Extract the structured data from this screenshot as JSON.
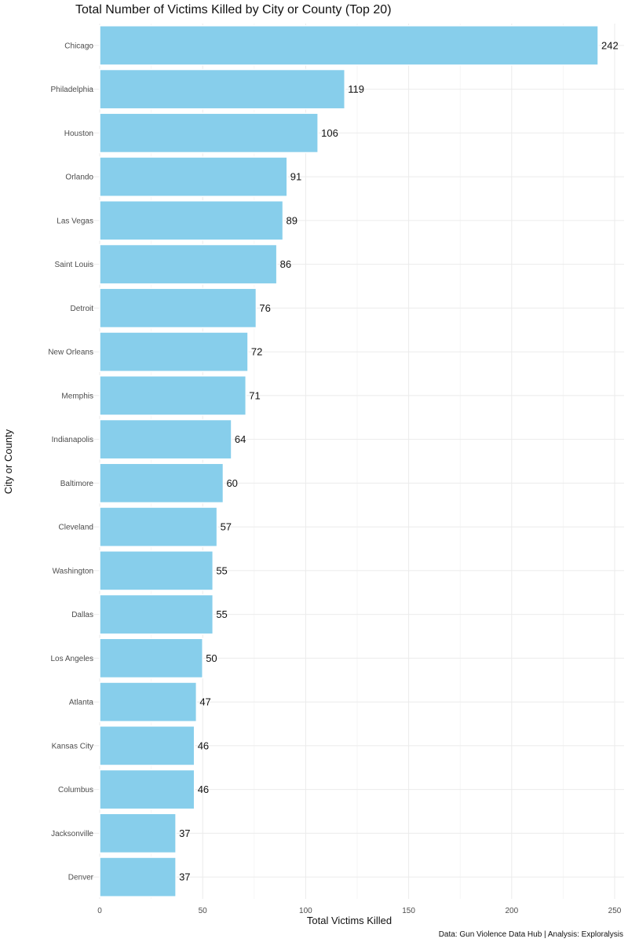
{
  "chart_data": {
    "type": "bar",
    "orientation": "horizontal",
    "title": "Total Number of Victims Killed by City or County (Top 20)",
    "xlabel": "Total Victims Killed",
    "ylabel": "City or County",
    "caption": "Data: Gun Violence Data Hub | Analysis: Exploralysis",
    "categories": [
      "Chicago",
      "Philadelphia",
      "Houston",
      "Orlando",
      "Las Vegas",
      "Saint Louis",
      "Detroit",
      "New Orleans",
      "Memphis",
      "Indianapolis",
      "Baltimore",
      "Cleveland",
      "Washington",
      "Dallas",
      "Los Angeles",
      "Atlanta",
      "Kansas City",
      "Columbus",
      "Jacksonville",
      "Denver"
    ],
    "values": [
      242,
      119,
      106,
      91,
      89,
      86,
      76,
      72,
      71,
      64,
      60,
      57,
      55,
      55,
      50,
      47,
      46,
      46,
      37,
      37
    ],
    "xlim": [
      0,
      253
    ],
    "xticks": [
      0,
      50,
      100,
      150,
      200,
      250
    ],
    "bar_color": "#87ceeb",
    "grid": true,
    "data_labels": true
  }
}
